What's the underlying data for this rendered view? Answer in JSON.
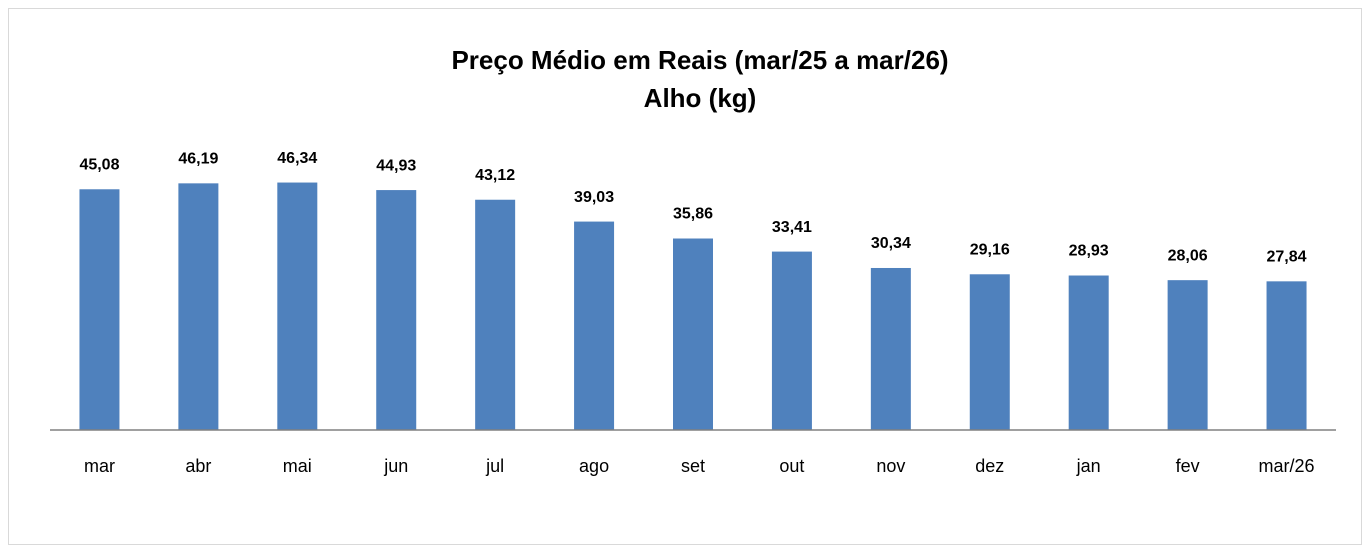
{
  "chart_data": {
    "type": "bar",
    "title": "Preço Médio em Reais (mar/25 a mar/26)",
    "subtitle": "Alho (kg)",
    "categories": [
      "mar",
      "abr",
      "mai",
      "jun",
      "jul",
      "ago",
      "set",
      "out",
      "nov",
      "dez",
      "jan",
      "fev",
      "mar/26"
    ],
    "values": [
      45.08,
      46.19,
      46.34,
      44.93,
      43.12,
      39.03,
      35.86,
      33.41,
      30.34,
      29.16,
      28.93,
      28.06,
      27.84
    ],
    "value_labels": [
      "45,08",
      "46,19",
      "46,34",
      "44,93",
      "43,12",
      "39,03",
      "35,86",
      "33,41",
      "30,34",
      "29,16",
      "28,93",
      "28,06",
      "27,84"
    ],
    "color": "#4f81bd",
    "ylim": [
      0,
      50
    ]
  }
}
